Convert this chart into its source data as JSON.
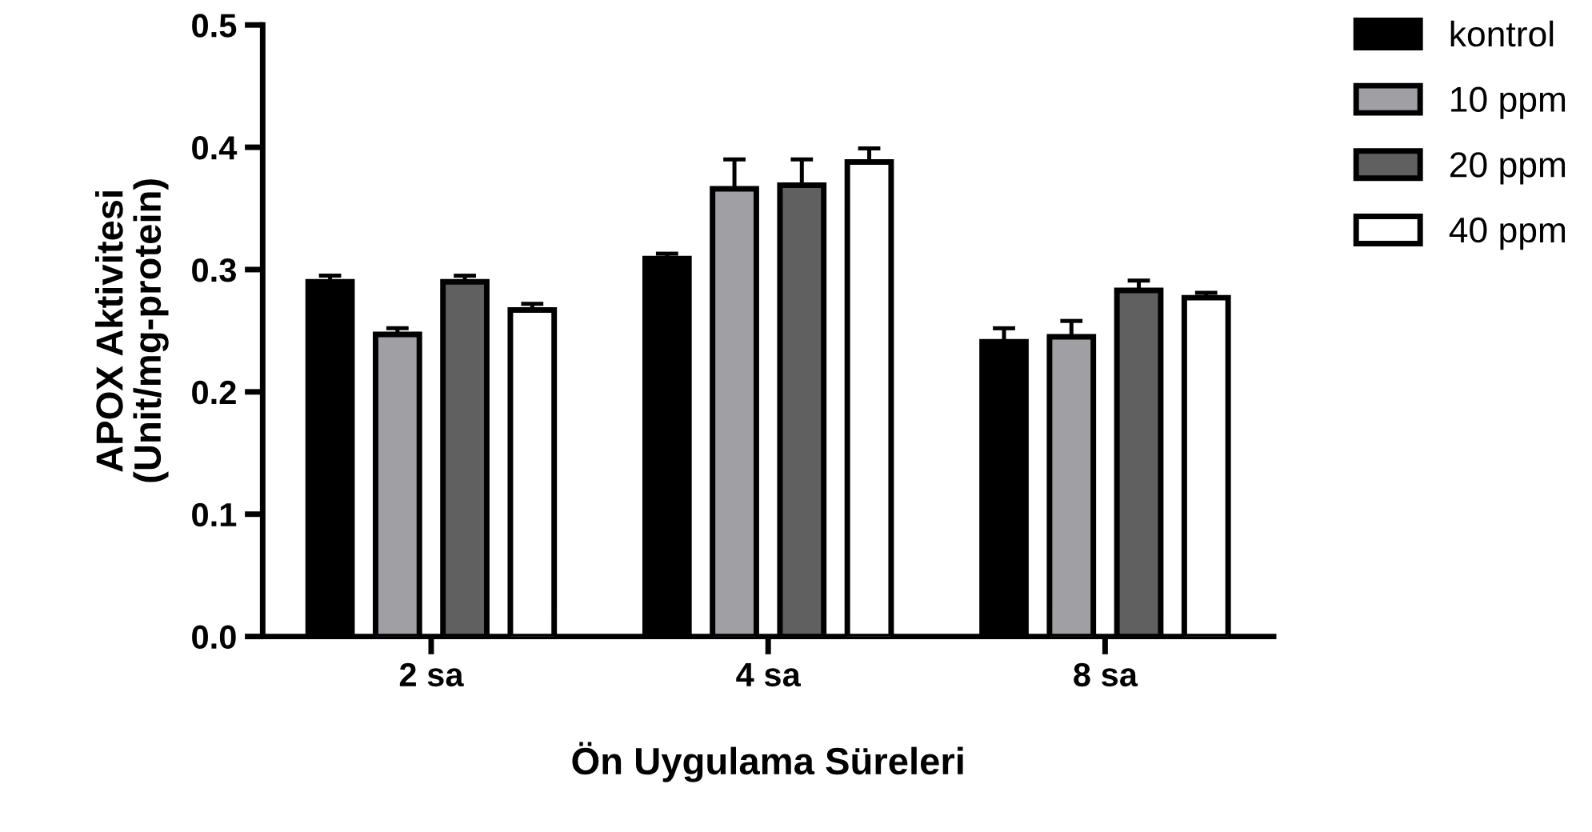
{
  "chart_data": {
    "type": "bar",
    "xlabel": "Ön Uygulama Süreleri",
    "ylabel": "APOX Aktivitesi\n(Unit/mg-protein)",
    "categories": [
      "2 sa",
      "4 sa",
      "8 sa"
    ],
    "series": [
      {
        "name": "kontrol",
        "color": "#000000",
        "values": [
          0.29,
          0.309,
          0.241
        ],
        "errors": [
          [
            0.29,
            0.295
          ],
          [
            0.309,
            0.313
          ],
          [
            0.241,
            0.252
          ]
        ]
      },
      {
        "name": "10 ppm",
        "color": "#a0a0a4",
        "values": [
          0.247,
          0.366,
          0.245
        ],
        "errors": [
          [
            0.247,
            0.252
          ],
          [
            0.366,
            0.39
          ],
          [
            0.245,
            0.258
          ]
        ]
      },
      {
        "name": "20 ppm",
        "color": "#606060",
        "values": [
          0.29,
          0.369,
          0.283
        ],
        "errors": [
          [
            0.29,
            0.295
          ],
          [
            0.369,
            0.39
          ],
          [
            0.283,
            0.291
          ]
        ]
      },
      {
        "name": "40 ppm",
        "color": "#ffffff",
        "values": [
          0.267,
          0.388,
          0.277
        ],
        "errors": [
          [
            0.267,
            0.272
          ],
          [
            0.388,
            0.399
          ],
          [
            0.277,
            0.281
          ]
        ]
      }
    ],
    "ylim": [
      0,
      0.5
    ],
    "yticks": [
      {
        "value": 0,
        "label": "0.0"
      },
      {
        "value": 0.1,
        "label": "0.1"
      },
      {
        "value": 0.2,
        "label": "0.2"
      },
      {
        "value": 0.3,
        "label": "0.3"
      },
      {
        "value": 0.4,
        "label": "0.4"
      },
      {
        "value": 0.5,
        "label": "0.5"
      }
    ],
    "grid": false,
    "legend": "right"
  }
}
